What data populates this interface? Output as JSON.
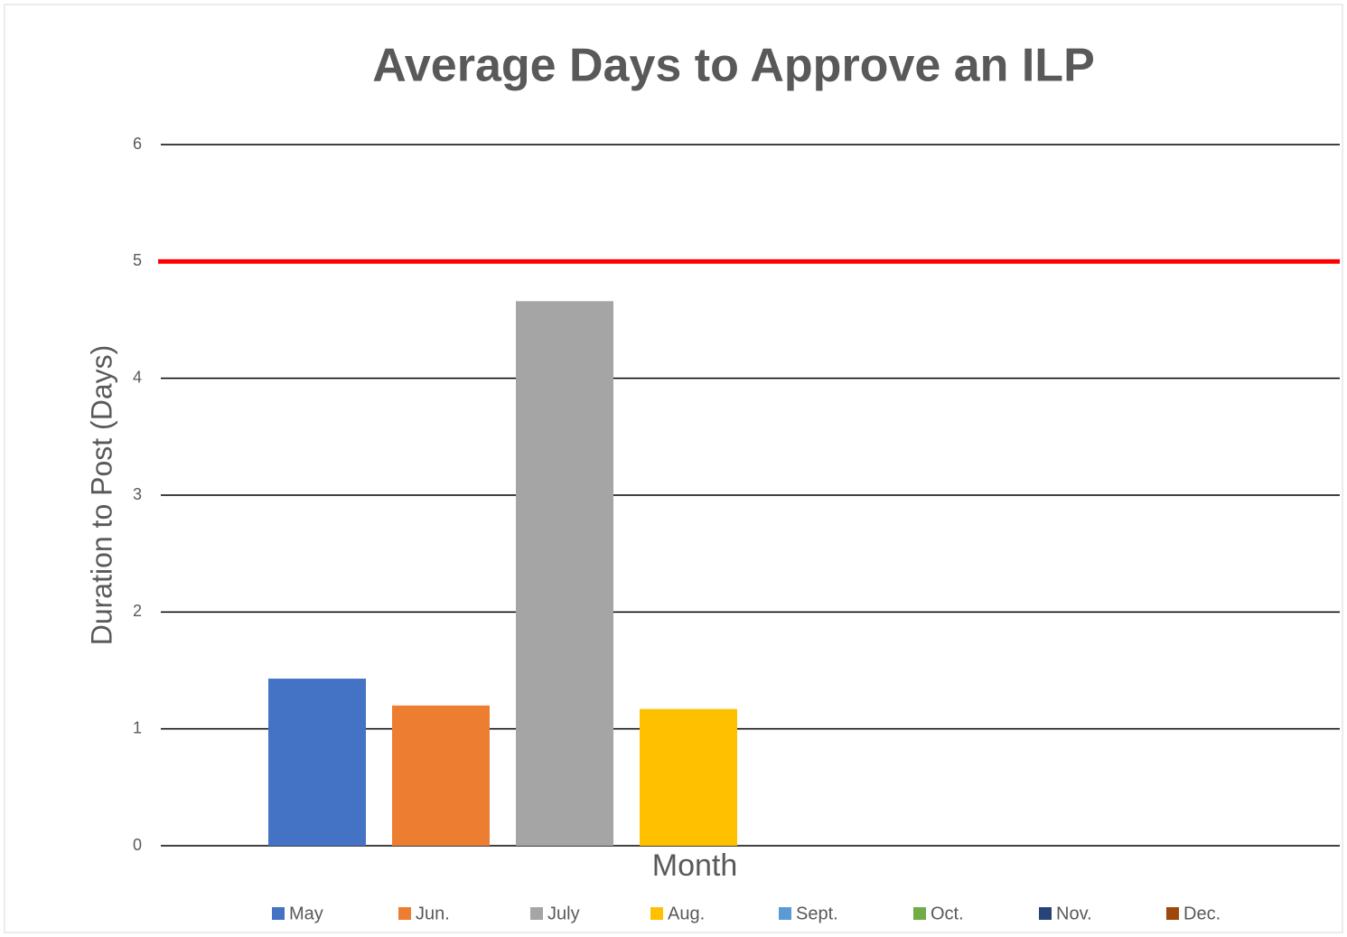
{
  "chart_data": {
    "type": "bar",
    "title": "Average Days to Approve an ILP",
    "y_label": "Duration to Post (Days)",
    "x_label": "Month",
    "series": [
      {
        "name": "May",
        "color": "#4472c4",
        "values": [
          1.43
        ]
      },
      {
        "name": "Jun.",
        "color": "#ed7d31",
        "values": [
          1.2
        ]
      },
      {
        "name": "July",
        "color": "#a5a5a5",
        "values": [
          4.66
        ]
      },
      {
        "name": "Aug.",
        "color": "#ffc000",
        "values": [
          1.17
        ]
      },
      {
        "name": "Sept.",
        "color": "#5b9bd5",
        "values": [
          null
        ]
      },
      {
        "name": "Oct.",
        "color": "#70ad47",
        "values": [
          null
        ]
      },
      {
        "name": "Nov.",
        "color": "#264478",
        "values": [
          null
        ]
      },
      {
        "name": "Dec.",
        "color": "#9e480e",
        "values": [
          null
        ]
      }
    ],
    "reference_line": {
      "value": 5,
      "color": "#ff0000"
    },
    "ylim": [
      0,
      6
    ],
    "yticks": [
      0,
      1,
      2,
      3,
      4,
      5,
      6
    ],
    "grid": true,
    "legend": "bottom"
  }
}
